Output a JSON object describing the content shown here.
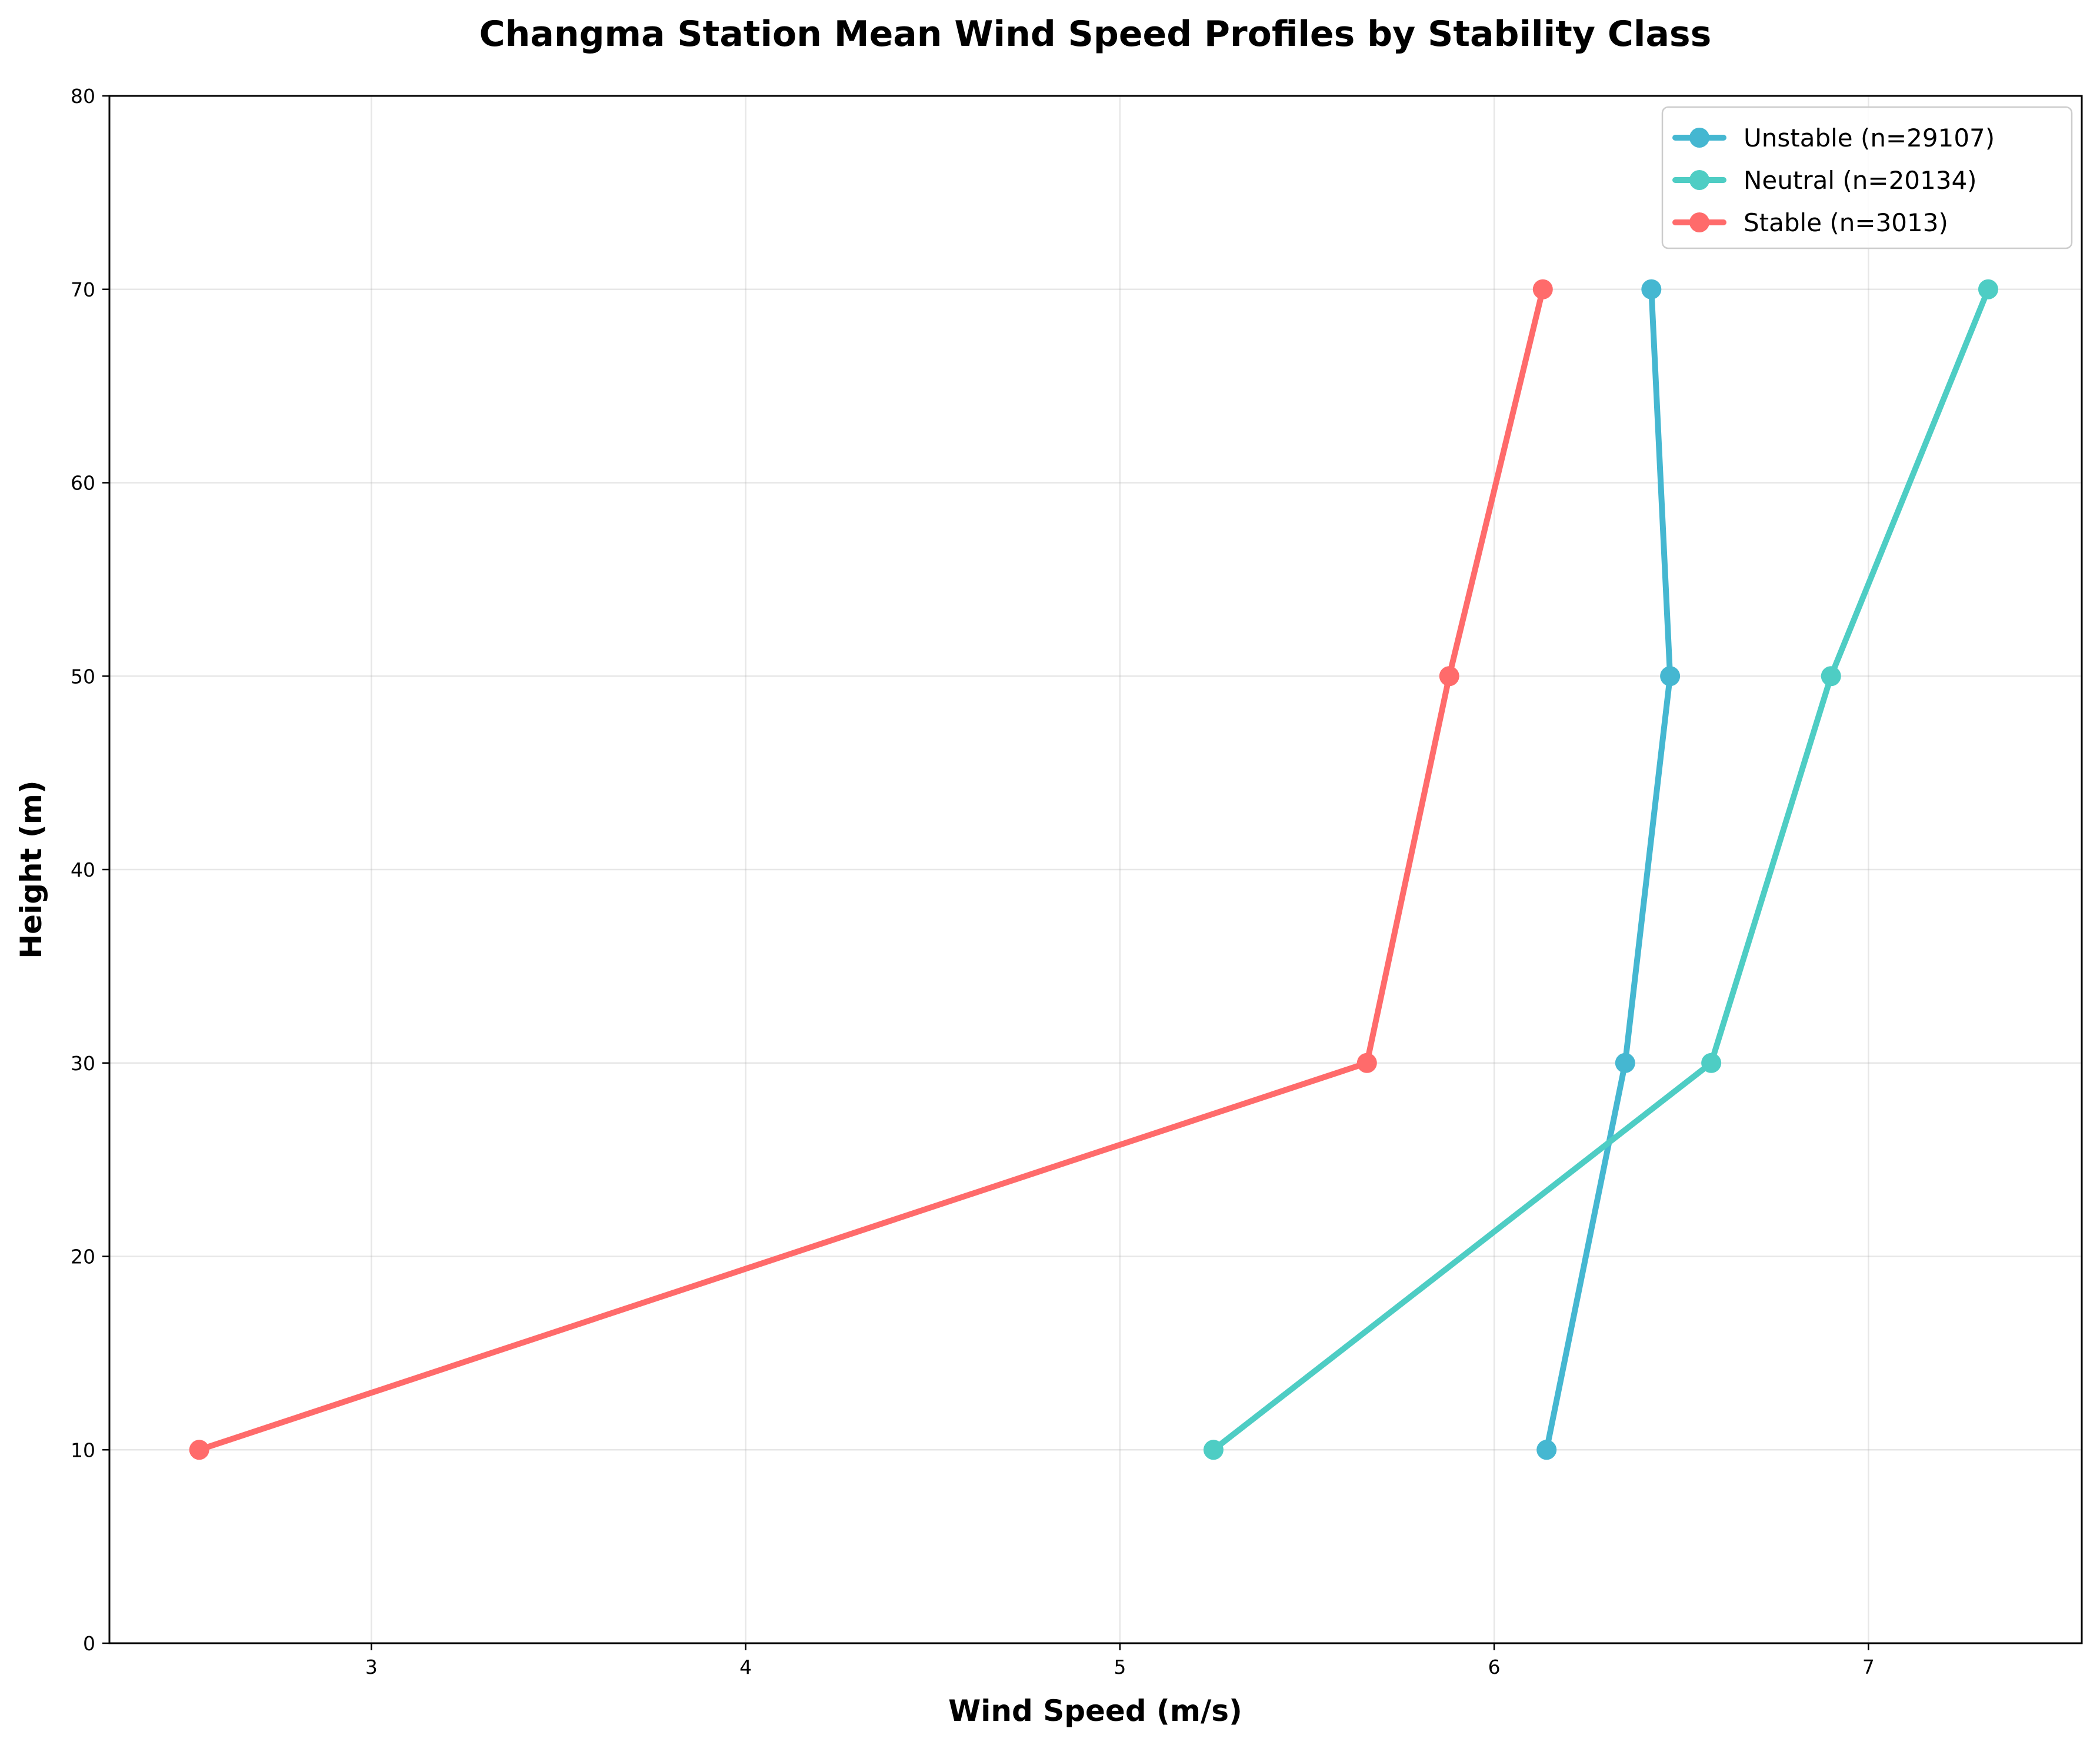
{
  "chart_data": {
    "type": "line",
    "title": "Changma Station Mean Wind Speed Profiles by Stability Class",
    "xlabel": "Wind Speed (m/s)",
    "ylabel": "Height (m)",
    "xlim": [
      2.3,
      7.57
    ],
    "ylim": [
      0,
      80
    ],
    "xticks": [
      3,
      4,
      5,
      6,
      7
    ],
    "yticks": [
      0,
      10,
      20,
      30,
      40,
      50,
      60,
      70,
      80
    ],
    "grid": true,
    "legend_position": "top-right",
    "series": [
      {
        "name": "Unstable (n=29107)",
        "color": "#45B7D1",
        "points": [
          {
            "x": 6.14,
            "y": 10
          },
          {
            "x": 6.35,
            "y": 30
          },
          {
            "x": 6.47,
            "y": 50
          },
          {
            "x": 6.42,
            "y": 70
          }
        ]
      },
      {
        "name": "Neutral (n=20134)",
        "color": "#4ECDC4",
        "points": [
          {
            "x": 5.25,
            "y": 10
          },
          {
            "x": 6.58,
            "y": 30
          },
          {
            "x": 6.9,
            "y": 50
          },
          {
            "x": 7.32,
            "y": 70
          }
        ]
      },
      {
        "name": "Stable (n=3013)",
        "color": "#FF6B6B",
        "points": [
          {
            "x": 2.54,
            "y": 10
          },
          {
            "x": 5.66,
            "y": 30
          },
          {
            "x": 5.88,
            "y": 50
          },
          {
            "x": 6.13,
            "y": 70
          }
        ]
      }
    ]
  }
}
